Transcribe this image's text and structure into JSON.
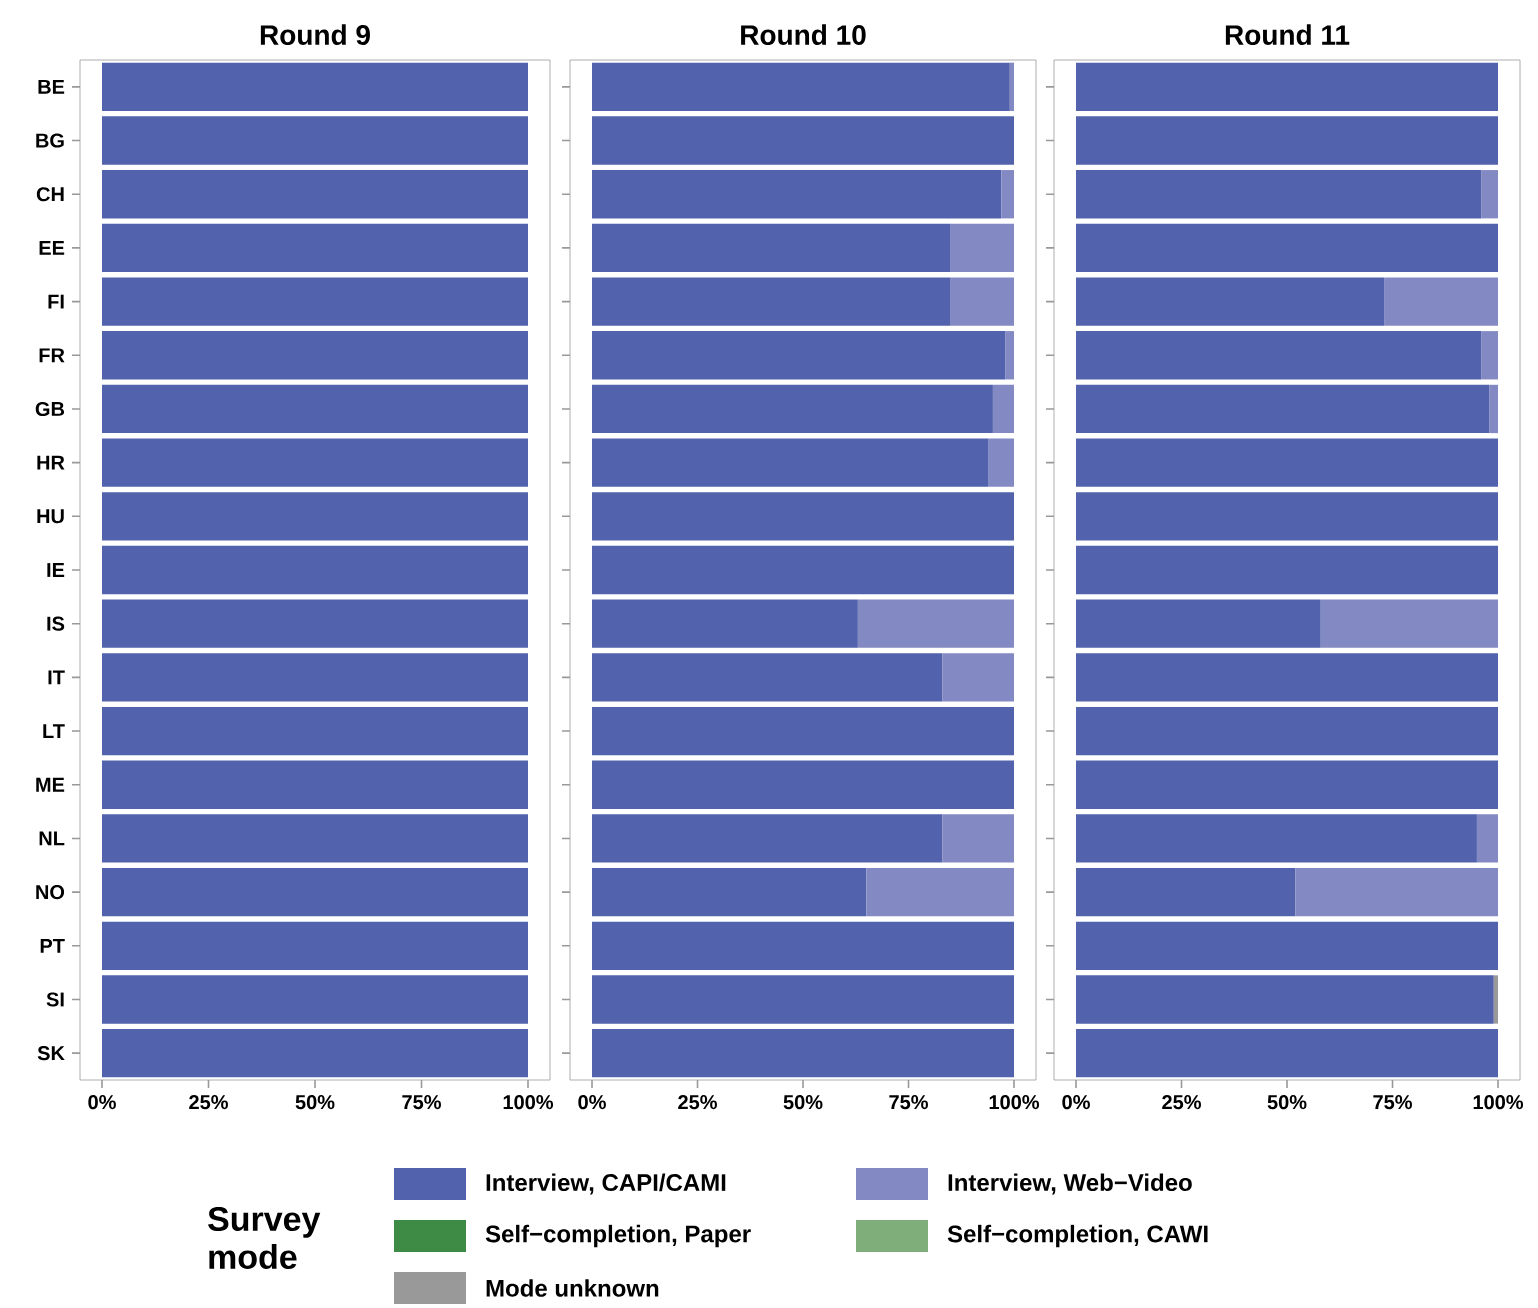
{
  "chart_data": [
    {
      "type": "bar",
      "orientation": "horizontal",
      "stacked": true,
      "title": "Round 9",
      "legend": "bottom",
      "legend_title": "Survey mode",
      "categories": [
        "BE",
        "BG",
        "CH",
        "EE",
        "FI",
        "FR",
        "GB",
        "HR",
        "HU",
        "IE",
        "IS",
        "IT",
        "LT",
        "ME",
        "NL",
        "NO",
        "PT",
        "SI",
        "SK"
      ],
      "xlim": [
        0,
        100
      ],
      "xticks": [
        {
          "value": 0,
          "label": "0%"
        },
        {
          "value": 25,
          "label": "25%"
        },
        {
          "value": 50,
          "label": "50%"
        },
        {
          "value": 75,
          "label": "75%"
        },
        {
          "value": 100,
          "label": "100%"
        }
      ],
      "series": [
        {
          "name": "Interview, CAPI/CAMI",
          "color": "#5262ad",
          "values": [
            100,
            100,
            100,
            100,
            100,
            100,
            100,
            100,
            100,
            100,
            100,
            100,
            100,
            100,
            100,
            100,
            100,
            100,
            100
          ]
        },
        {
          "name": "Interview, Web−Video",
          "color": "#8389c2",
          "values": [
            null,
            null,
            null,
            null,
            null,
            null,
            null,
            null,
            null,
            null,
            null,
            null,
            null,
            null,
            null,
            null,
            null,
            null,
            null
          ]
        },
        {
          "name": "Self−completion, Paper",
          "color": "#3d8b45",
          "values": [
            null,
            null,
            null,
            null,
            null,
            null,
            null,
            null,
            null,
            null,
            null,
            null,
            null,
            null,
            null,
            null,
            null,
            null,
            null
          ]
        },
        {
          "name": "Self−completion, CAWI",
          "color": "#7fae7a",
          "values": [
            null,
            null,
            null,
            null,
            null,
            null,
            null,
            null,
            null,
            null,
            null,
            null,
            null,
            null,
            null,
            null,
            null,
            null,
            null
          ]
        },
        {
          "name": "Mode unknown",
          "color": "#999999",
          "values": [
            null,
            null,
            null,
            null,
            null,
            null,
            null,
            null,
            null,
            null,
            null,
            null,
            null,
            null,
            null,
            null,
            null,
            null,
            null
          ]
        }
      ]
    },
    {
      "type": "bar",
      "orientation": "horizontal",
      "stacked": true,
      "title": "Round 10",
      "tick_labels": "x",
      "categories": [
        null,
        null,
        null,
        null,
        null,
        null,
        null,
        null,
        null,
        null,
        null,
        null,
        null,
        null,
        null,
        null,
        null,
        null,
        null
      ],
      "xlim": [
        0,
        100
      ],
      "xticks": [
        {
          "value": 0,
          "label": "0%"
        },
        {
          "value": 25,
          "label": "25%"
        },
        {
          "value": 50,
          "label": "50%"
        },
        {
          "value": 75,
          "label": "75%"
        },
        {
          "value": 100,
          "label": "100%"
        }
      ],
      "series": [
        {
          "color": "#5262ad",
          "values": [
            99,
            100,
            97,
            85,
            85,
            98,
            95,
            94,
            100,
            100,
            63,
            83,
            100,
            100,
            83,
            65,
            100,
            100,
            100
          ]
        },
        {
          "color": "#8389c2",
          "values": [
            1,
            null,
            3,
            15,
            15,
            2,
            5,
            6,
            null,
            null,
            37,
            17,
            null,
            null,
            17,
            35,
            null,
            null,
            null
          ]
        }
      ]
    },
    {
      "type": "bar",
      "orientation": "horizontal",
      "stacked": true,
      "title": "Round 11",
      "tick_labels": "x",
      "categories": [
        null,
        null,
        null,
        null,
        null,
        null,
        null,
        null,
        null,
        null,
        null,
        null,
        null,
        null,
        null,
        null,
        null,
        null,
        null
      ],
      "xlim": [
        0,
        100
      ],
      "xticks": [
        {
          "value": 0,
          "label": "0%"
        },
        {
          "value": 25,
          "label": "25%"
        },
        {
          "value": 50,
          "label": "50%"
        },
        {
          "value": 75,
          "label": "75%"
        },
        {
          "value": 100,
          "label": "100%"
        }
      ],
      "series": [
        {
          "color": "#5262ad",
          "values": [
            100,
            100,
            96,
            100,
            73,
            96,
            98,
            100,
            100,
            100,
            58,
            100,
            100,
            100,
            95,
            52,
            100,
            99,
            100
          ]
        },
        {
          "color": "#8389c2",
          "values": [
            null,
            null,
            4,
            null,
            27,
            4,
            2,
            null,
            null,
            null,
            42,
            null,
            null,
            null,
            5,
            48,
            null,
            null,
            null
          ]
        },
        {
          "color": "#999999",
          "values": [
            null,
            null,
            null,
            null,
            null,
            null,
            null,
            null,
            null,
            null,
            null,
            null,
            null,
            null,
            null,
            null,
            null,
            1,
            null
          ]
        }
      ]
    }
  ]
}
